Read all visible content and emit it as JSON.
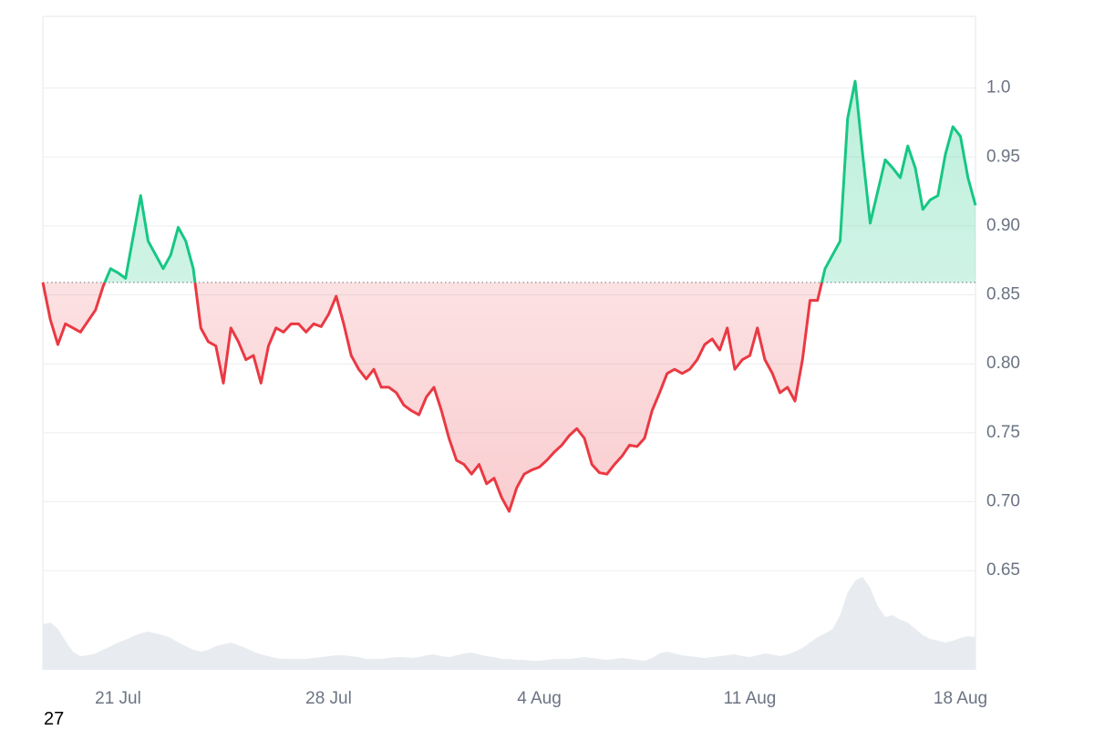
{
  "chart_data": {
    "type": "line",
    "xlim": [
      0,
      124
    ],
    "xticks": [
      {
        "value": 10,
        "label": "21 Jul"
      },
      {
        "value": 38,
        "label": "28 Jul"
      },
      {
        "value": 66,
        "label": "4 Aug"
      },
      {
        "value": 94,
        "label": "11 Aug"
      },
      {
        "value": 122,
        "label": "18 Aug"
      }
    ],
    "ylim": [
      0.578,
      1.052
    ],
    "yticks": [
      {
        "value": 1,
        "label": "1.0"
      },
      0.95,
      {
        "value": 0.9,
        "label": "0.90"
      },
      0.85,
      {
        "value": 0.8,
        "label": "0.80"
      },
      0.75,
      {
        "value": 0.7,
        "label": "0.70"
      },
      0.65
    ],
    "grid": true,
    "up_color": "#16c784",
    "down_color": "#ea3943",
    "values": [
      0.859,
      0.832,
      0.814,
      0.829,
      0.826,
      0.823,
      0.831,
      0.839,
      0.856,
      0.869,
      0.866,
      0.862,
      0.892,
      0.922,
      0.889,
      0.879,
      0.869,
      0.879,
      0.899,
      0.889,
      0.869,
      0.826,
      0.816,
      0.813,
      0.786,
      0.826,
      0.816,
      0.803,
      0.806,
      0.786,
      0.813,
      0.826,
      0.823,
      0.829,
      0.829,
      0.823,
      0.829,
      0.827,
      0.836,
      0.849,
      0.829,
      0.806,
      0.796,
      0.789,
      0.796,
      0.783,
      0.783,
      0.779,
      0.77,
      0.766,
      0.763,
      0.776,
      0.783,
      0.766,
      0.746,
      0.73,
      0.727,
      0.72,
      0.727,
      0.713,
      0.717,
      0.703,
      0.693,
      0.71,
      0.72,
      0.723,
      0.725,
      0.73,
      0.736,
      0.741,
      0.748,
      0.753,
      0.746,
      0.727,
      0.721,
      0.72,
      0.727,
      0.733,
      0.741,
      0.74,
      0.746,
      0.766,
      0.779,
      0.793,
      0.796,
      0.793,
      0.796,
      0.803,
      0.814,
      0.818,
      0.81,
      0.826,
      0.796,
      0.803,
      0.806,
      0.826,
      0.803,
      0.793,
      0.779,
      0.783,
      0.773,
      0.803,
      0.846,
      0.846,
      0.869,
      0.879,
      0.889,
      0.978,
      1.005,
      0.952,
      0.902,
      0.925,
      0.948,
      0.942,
      0.935,
      0.958,
      0.942,
      0.912,
      0.919,
      0.922,
      0.952,
      0.972,
      0.965,
      0.935,
      0.915
    ],
    "volume": {
      "color": "#e8ecf0",
      "ylim": [
        0,
        100
      ],
      "values": [
        50,
        52,
        45,
        32,
        20,
        15,
        16,
        18,
        22,
        26,
        30,
        33,
        37,
        40,
        42,
        40,
        38,
        35,
        30,
        26,
        22,
        20,
        22,
        26,
        28,
        30,
        27,
        24,
        20,
        17,
        15,
        13,
        12,
        12,
        12,
        12,
        13,
        14,
        15,
        16,
        16,
        15,
        14,
        12,
        12,
        12,
        13,
        14,
        14,
        13,
        14,
        16,
        17,
        15,
        14,
        16,
        18,
        19,
        17,
        15,
        14,
        12,
        12,
        11,
        11,
        10,
        10,
        11,
        12,
        12,
        12,
        13,
        14,
        13,
        12,
        11,
        12,
        13,
        12,
        11,
        10,
        13,
        18,
        20,
        18,
        16,
        15,
        14,
        13,
        14,
        15,
        16,
        17,
        15,
        14,
        16,
        18,
        17,
        15,
        17,
        20,
        24,
        30,
        36,
        40,
        45,
        60,
        85,
        98,
        102,
        90,
        70,
        58,
        60,
        55,
        52,
        45,
        38,
        34,
        32,
        30,
        32,
        35,
        37,
        36
      ]
    }
  },
  "footer_text": "27"
}
